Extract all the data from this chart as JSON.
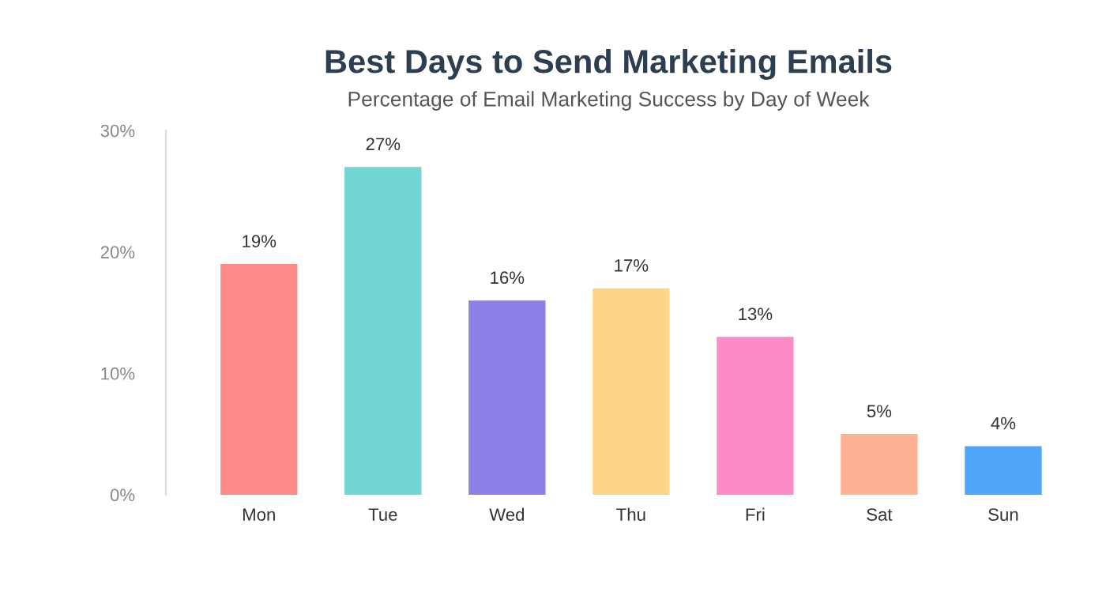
{
  "chart_data": {
    "type": "bar",
    "title": "Best Days to Send Marketing Emails",
    "subtitle": "Percentage of Email Marketing Success by Day of Week",
    "categories": [
      "Mon",
      "Tue",
      "Wed",
      "Thu",
      "Fri",
      "Sat",
      "Sun"
    ],
    "values": [
      19,
      27,
      16,
      17,
      13,
      5,
      4
    ],
    "value_labels": [
      "19%",
      "27%",
      "16%",
      "17%",
      "13%",
      "5%",
      "4%"
    ],
    "colors": [
      "#ff8a8a",
      "#72d6d2",
      "#8c7fe8",
      "#fdd58a",
      "#fb8cc7",
      "#ffb196",
      "#4fa6fb"
    ],
    "ylim": [
      0,
      30
    ],
    "yticks": [
      {
        "value": 0,
        "label": "0%"
      },
      {
        "value": 10,
        "label": "10%"
      },
      {
        "value": 20,
        "label": "20%"
      },
      {
        "value": 30,
        "label": "30%"
      }
    ],
    "grid": false,
    "legend": false
  }
}
